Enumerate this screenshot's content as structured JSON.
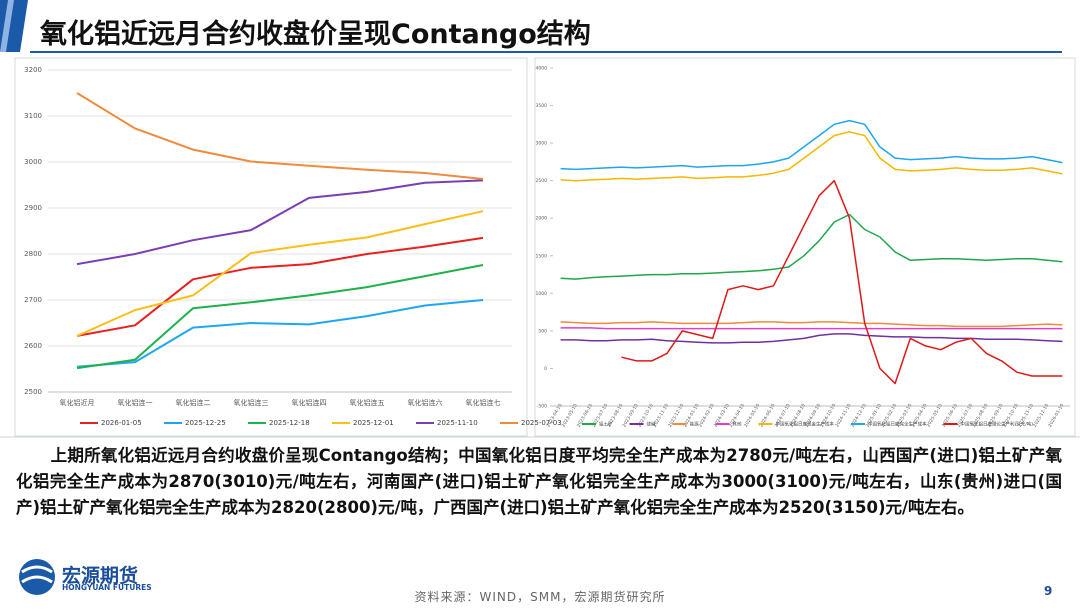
{
  "header": {
    "title": "氧化铝近远月合约收盘价呈现Contango结构"
  },
  "chart_data": [
    {
      "type": "line",
      "categories": [
        "氧化铝近月",
        "氧化铝连一",
        "氧化铝连二",
        "氧化铝连三",
        "氧化铝连四",
        "氧化铝连五",
        "氧化铝连六",
        "氧化铝连七"
      ],
      "ylim": [
        2500,
        3200
      ],
      "yticks": [
        2500,
        2600,
        2700,
        2800,
        2900,
        3000,
        3100,
        3200
      ],
      "grid": true,
      "legend": "bottom",
      "series": [
        {
          "name": "2026-01-05",
          "color": "#e8201f",
          "values": [
            2622,
            2645,
            2745,
            2770,
            2778,
            2800,
            2816,
            2835
          ]
        },
        {
          "name": "2025-12-25",
          "color": "#1ea7ee",
          "values": [
            2555,
            2565,
            2640,
            2650,
            2647,
            2665,
            2688,
            2700
          ]
        },
        {
          "name": "2025-12-18",
          "color": "#1fb14b",
          "values": [
            2552,
            2570,
            2682,
            2695,
            2710,
            2728,
            2752,
            2776
          ]
        },
        {
          "name": "2025-12-01",
          "color": "#fbbf1a",
          "values": [
            2622,
            2678,
            2710,
            2802,
            2820,
            2836,
            2865,
            2893
          ]
        },
        {
          "name": "2025-11-10",
          "color": "#7b3fb5",
          "values": [
            2778,
            2800,
            2830,
            2852,
            2922,
            2935,
            2955,
            2960
          ]
        },
        {
          "name": "2025-07-03",
          "color": "#f08a3c",
          "values": [
            3150,
            3073,
            3027,
            3001,
            2992,
            2983,
            2976,
            2963
          ]
        }
      ]
    },
    {
      "type": "line",
      "categories": [
        "2023-04-10",
        "2023-05-10",
        "2023-06-10",
        "2023-07-10",
        "2023-08-10",
        "2023-09-10",
        "2023-10-10",
        "2023-11-10",
        "2023-12-10",
        "2024-01-10",
        "2024-02-10",
        "2024-03-10",
        "2024-04-10",
        "2024-05-10",
        "2024-06-10",
        "2024-07-10",
        "2024-08-10",
        "2024-09-10",
        "2024-10-10",
        "2024-11-10",
        "2024-12-10",
        "2025-01-10",
        "2025-02-10",
        "2025-03-10",
        "2025-04-10",
        "2025-05-10",
        "2025-06-10",
        "2025-07-10",
        "2025-08-10",
        "2025-09-10",
        "2025-10-10",
        "2025-11-10",
        "2025-12-10",
        "2026-01-10"
      ],
      "ylim": [
        -500,
        4000
      ],
      "yticks": [
        -500,
        0,
        500,
        1000,
        1500,
        2000,
        2500,
        3000,
        3500,
        4000
      ],
      "grid": false,
      "legend": "bottom",
      "series": [
        {
          "name": "铝土矿",
          "color": "#1fa84a",
          "values": [
            1200,
            1190,
            1210,
            1220,
            1230,
            1240,
            1250,
            1250,
            1260,
            1260,
            1270,
            1280,
            1290,
            1300,
            1320,
            1350,
            1500,
            1700,
            1950,
            2050,
            1850,
            1750,
            1550,
            1440,
            1450,
            1460,
            1460,
            1450,
            1440,
            1450,
            1460,
            1460,
            1440,
            1420
          ]
        },
        {
          "name": "烧碱",
          "color": "#7030a0",
          "values": [
            380,
            380,
            370,
            370,
            380,
            380,
            390,
            370,
            360,
            350,
            340,
            340,
            350,
            350,
            360,
            380,
            400,
            440,
            460,
            460,
            440,
            430,
            420,
            420,
            410,
            410,
            400,
            400,
            390,
            390,
            390,
            380,
            370,
            360
          ]
        },
        {
          "name": "能源",
          "color": "#f08a3c",
          "values": [
            620,
            610,
            600,
            600,
            610,
            610,
            620,
            610,
            600,
            600,
            600,
            600,
            610,
            620,
            620,
            610,
            610,
            620,
            620,
            610,
            600,
            600,
            590,
            580,
            570,
            570,
            560,
            560,
            560,
            560,
            570,
            580,
            590,
            580
          ]
        },
        {
          "name": "其他",
          "color": "#e040c8",
          "values": [
            540,
            540,
            540,
            530,
            530,
            530,
            530,
            530,
            530,
            530,
            530,
            530,
            530,
            530,
            530,
            530,
            530,
            530,
            530,
            530,
            530,
            530,
            530,
            530,
            530,
            530,
            530,
            530,
            530,
            530,
            530,
            530,
            530,
            530
          ]
        },
        {
          "name": "中国氧化铝日度现金生产成本",
          "color": "#f5b800",
          "values": [
            2510,
            2500,
            2510,
            2520,
            2530,
            2520,
            2530,
            2540,
            2550,
            2530,
            2540,
            2550,
            2550,
            2570,
            2600,
            2650,
            2800,
            2950,
            3100,
            3150,
            3100,
            2800,
            2650,
            2630,
            2640,
            2650,
            2670,
            2650,
            2640,
            2640,
            2650,
            2670,
            2630,
            2590
          ]
        },
        {
          "name": "中国氧化铝日度完全生产成本",
          "color": "#1ea7ee",
          "values": [
            2660,
            2650,
            2660,
            2670,
            2680,
            2670,
            2680,
            2690,
            2700,
            2680,
            2690,
            2700,
            2700,
            2720,
            2750,
            2800,
            2950,
            3100,
            3250,
            3300,
            3250,
            2950,
            2800,
            2780,
            2790,
            2800,
            2820,
            2800,
            2790,
            2790,
            2800,
            2820,
            2780,
            2740
          ]
        },
        {
          "name": "中国氧化铝日度理论生产利润(元/吨)",
          "color": "#e01818",
          "values": [
            null,
            null,
            null,
            null,
            150,
            100,
            100,
            200,
            500,
            450,
            400,
            1050,
            1100,
            1050,
            1100,
            1500,
            1900,
            2300,
            2500,
            2000,
            600,
            0,
            -200,
            400,
            300,
            250,
            350,
            400,
            200,
            100,
            -50,
            -100,
            -100,
            -100
          ]
        }
      ]
    }
  ],
  "body": {
    "text": "上期所氧化铝近远月合约收盘价呈现Contango结构；中国氧化铝日度平均完全生产成本为2780元/吨左右，山西国产(进口)铝土矿产氧化铝完全生产成本为2870(3010)元/吨左右，河南国产(进口)铝土矿产氧化铝完全生产成本为3000(3100)元/吨左右，山东(贵州)进口(国产)铝土矿产氧化铝完全生产成本为2820(2800)元/吨，广西国产(进口)铝土矿产氧化铝完全生产成本为2520(3150)元/吨左右。"
  },
  "footer": {
    "logo_cn": "宏源期货",
    "logo_en": "HONGYUAN FUTURES",
    "source": "资料来源：WIND，SMM，宏源期货研究所",
    "page": "9"
  }
}
